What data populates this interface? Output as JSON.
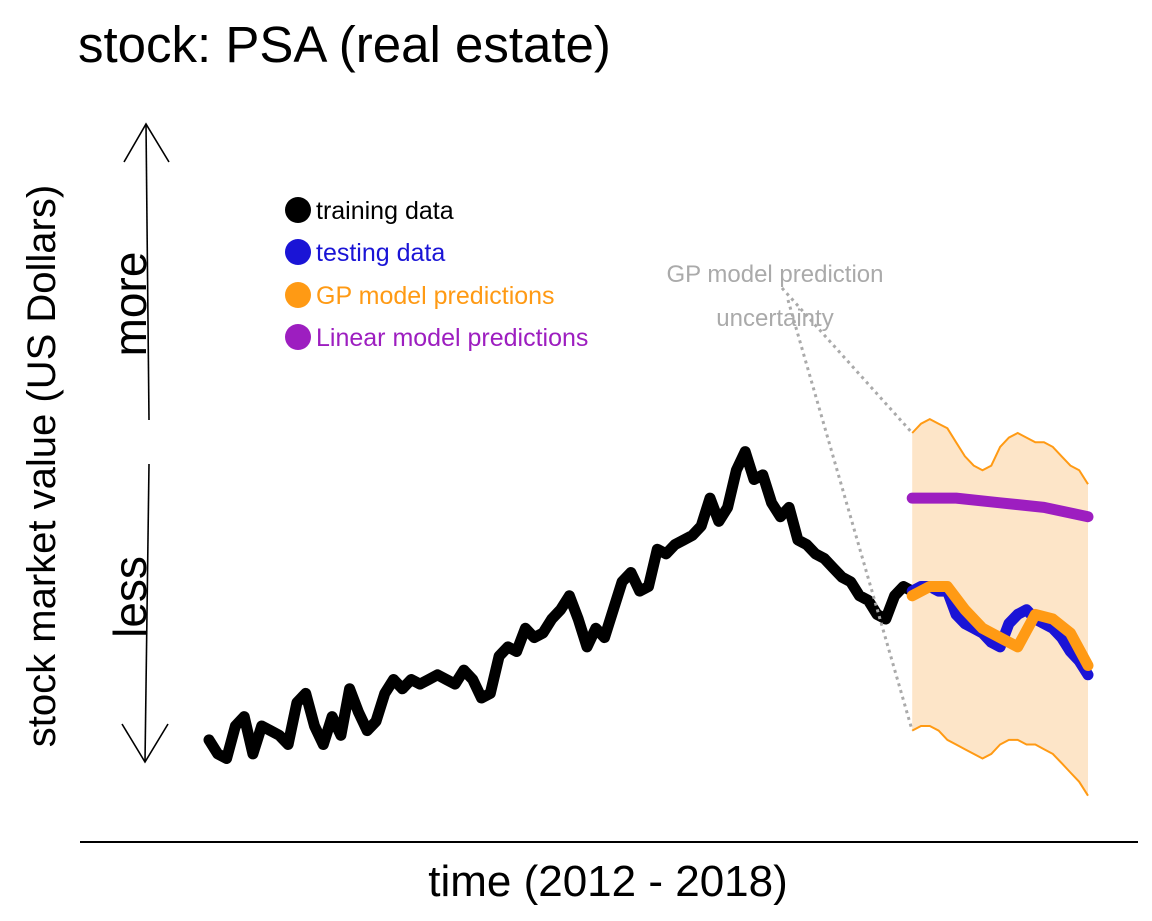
{
  "chart_data": {
    "type": "line",
    "title": "stock: PSA (real estate)",
    "xlabel": "time (2012 - 2018)",
    "ylabel": "stock market value (US Dollars)",
    "direction_labels": {
      "up": "more",
      "down": "less"
    },
    "annotation": "GP model prediction uncertainty",
    "annotation_lines": [
      "GP model prediction",
      "uncertainty"
    ],
    "grid": false,
    "legend_position": "top-left",
    "colors": {
      "training": "#000000",
      "testing": "#1a14d6",
      "gp": "#ff9a14",
      "linear": "#9d1ec0",
      "band": "#fde5c8",
      "annotation": "#aaaaaa"
    },
    "legend": [
      {
        "label": "training data",
        "color": "#000000"
      },
      {
        "label": "testing data",
        "color": "#1a14d6"
      },
      {
        "label": "GP model predictions",
        "color": "#ff9a14"
      },
      {
        "label": "Linear model predictions",
        "color": "#9d1ec0"
      }
    ],
    "xlim": [
      0,
      100
    ],
    "ylim": [
      0,
      100
    ],
    "series": [
      {
        "name": "training data",
        "x": [
          0,
          1,
          2,
          3,
          4,
          5,
          6,
          7,
          8,
          9,
          10,
          11,
          12,
          13,
          14,
          15,
          16,
          17,
          18,
          19,
          20,
          21,
          22,
          23,
          24,
          25,
          26,
          27,
          28,
          29,
          30,
          31,
          32,
          33,
          34,
          35,
          36,
          37,
          38,
          39,
          40,
          41,
          42,
          43,
          44,
          45,
          46,
          47,
          48,
          49,
          50,
          51,
          52,
          53,
          54,
          55,
          56,
          57,
          58,
          59,
          60,
          61,
          62,
          63,
          64,
          65,
          66,
          67,
          68,
          69,
          70,
          71,
          72,
          73,
          74,
          75,
          76,
          77,
          78,
          79,
          80
        ],
        "values": [
          14,
          11,
          10,
          17,
          19,
          11,
          17,
          16,
          15,
          13,
          22,
          24,
          17,
          13,
          19,
          15,
          25,
          20,
          16,
          18,
          24,
          27,
          25,
          27,
          26,
          27,
          28,
          27,
          26,
          29,
          27,
          23,
          24,
          32,
          34,
          33,
          38,
          36,
          37,
          40,
          42,
          45,
          40,
          34,
          38,
          36,
          42,
          48,
          50,
          46,
          47,
          55,
          54,
          56,
          57,
          58,
          60,
          66,
          61,
          64,
          72,
          76,
          70,
          71,
          65,
          62,
          64,
          57,
          56,
          54,
          53,
          51,
          49,
          48,
          45,
          44,
          41,
          40,
          45,
          47,
          46
        ]
      },
      {
        "name": "testing data",
        "x": [
          80,
          81,
          82,
          83,
          84,
          85,
          86,
          87,
          88,
          89,
          90,
          91,
          92,
          93,
          94,
          95,
          96,
          97,
          98,
          99,
          100
        ],
        "values": [
          46,
          47,
          47,
          46,
          46,
          41,
          39,
          38,
          37,
          35,
          34,
          39,
          41,
          42,
          40,
          39,
          38,
          36,
          33,
          31,
          28
        ]
      },
      {
        "name": "GP model predictions",
        "x": [
          80,
          82,
          84,
          86,
          88,
          90,
          92,
          94,
          96,
          98,
          100
        ],
        "values": [
          45,
          47,
          47,
          42,
          38,
          36,
          34,
          41,
          40,
          37,
          30
        ]
      },
      {
        "name": "Linear model predictions",
        "x": [
          80,
          85,
          90,
          95,
          100
        ],
        "values": [
          66,
          66,
          65,
          64,
          62
        ]
      }
    ],
    "uncertainty_band": {
      "x": [
        80,
        81,
        82,
        83,
        84,
        85,
        86,
        87,
        88,
        89,
        90,
        91,
        92,
        93,
        94,
        95,
        96,
        97,
        98,
        99,
        100
      ],
      "upper": [
        80,
        82,
        83,
        82,
        81,
        78,
        75,
        73,
        72,
        73,
        77,
        79,
        80,
        79,
        78,
        78,
        77,
        75,
        73,
        72,
        69
      ],
      "lower": [
        16,
        17,
        17,
        16,
        14,
        13,
        12,
        11,
        10,
        11,
        13,
        14,
        14,
        13,
        13,
        12,
        11,
        9,
        7,
        5,
        2
      ]
    }
  }
}
